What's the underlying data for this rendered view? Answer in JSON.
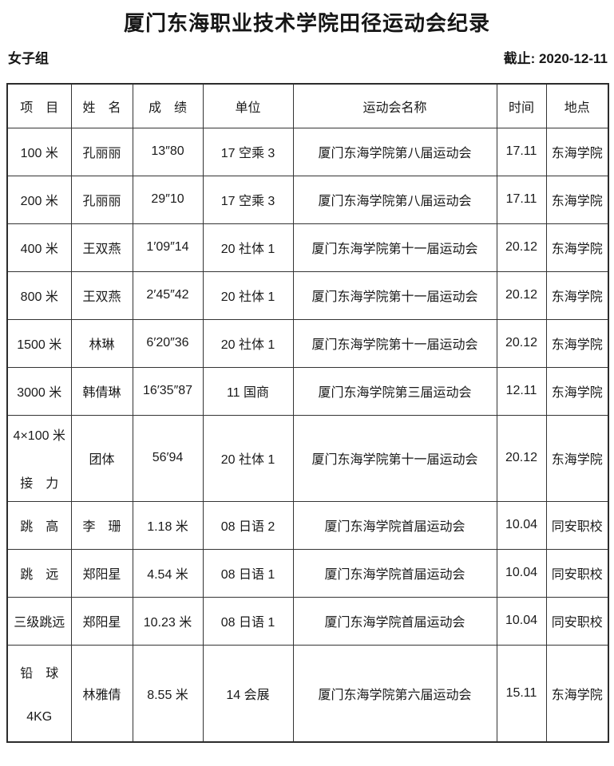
{
  "page": {
    "title": "厦门东海职业技术学院田径运动会纪录",
    "group_label": "女子组",
    "deadline_label": "截止: 2020-12-11"
  },
  "table": {
    "headers": [
      "项　目",
      "姓　名",
      "成　绩",
      "单位",
      "运动会名称",
      "时间",
      "地点"
    ],
    "rows": [
      {
        "event": [
          "100 米"
        ],
        "name": "孔丽丽",
        "result": "13″80",
        "unit": "17 空乘 3",
        "meet": "厦门东海学院第八届运动会",
        "time": "17.11",
        "place": "东海学院"
      },
      {
        "event": [
          "200 米"
        ],
        "name": "孔丽丽",
        "result": "29″10",
        "unit": "17 空乘 3",
        "meet": "厦门东海学院第八届运动会",
        "time": "17.11",
        "place": "东海学院"
      },
      {
        "event": [
          "400 米"
        ],
        "name": "王双燕",
        "result": "1′09″14",
        "unit": "20 社体 1",
        "meet": "厦门东海学院第十一届运动会",
        "time": "20.12",
        "place": "东海学院"
      },
      {
        "event": [
          "800 米"
        ],
        "name": "王双燕",
        "result": "2′45″42",
        "unit": "20 社体 1",
        "meet": "厦门东海学院第十一届运动会",
        "time": "20.12",
        "place": "东海学院"
      },
      {
        "event": [
          "1500 米"
        ],
        "name": "林琳",
        "result": "6′20″36",
        "unit": "20 社体 1",
        "meet": "厦门东海学院第十一届运动会",
        "time": "20.12",
        "place": "东海学院"
      },
      {
        "event": [
          "3000 米"
        ],
        "name": "韩倩琳",
        "result": "16′35″87",
        "unit": "11 国商",
        "meet": "厦门东海学院第三届运动会",
        "time": "12.11",
        "place": "东海学院"
      },
      {
        "event": [
          "4×100 米",
          "接　力"
        ],
        "name": "团体",
        "result": "56′94",
        "unit": "20 社体 1",
        "meet": "厦门东海学院第十一届运动会",
        "time": "20.12",
        "place": "东海学院"
      },
      {
        "event": [
          "跳　高"
        ],
        "name": "李　珊",
        "result": "1.18 米",
        "unit": "08 日语 2",
        "meet": "厦门东海学院首届运动会",
        "time": "10.04",
        "place": "同安职校"
      },
      {
        "event": [
          "跳　远"
        ],
        "name": "郑阳星",
        "result": "4.54 米",
        "unit": "08 日语 1",
        "meet": "厦门东海学院首届运动会",
        "time": "10.04",
        "place": "同安职校"
      },
      {
        "event": [
          "三级跳远"
        ],
        "name": "郑阳星",
        "result": "10.23 米",
        "unit": "08 日语 1",
        "meet": "厦门东海学院首届运动会",
        "time": "10.04",
        "place": "同安职校"
      },
      {
        "event": [
          "铅　球",
          "4KG"
        ],
        "name": "林雅倩",
        "result": "8.55 米",
        "unit": "14 会展",
        "meet": "厦门东海学院第六届运动会",
        "time": "15.11",
        "place": "东海学院"
      }
    ]
  }
}
